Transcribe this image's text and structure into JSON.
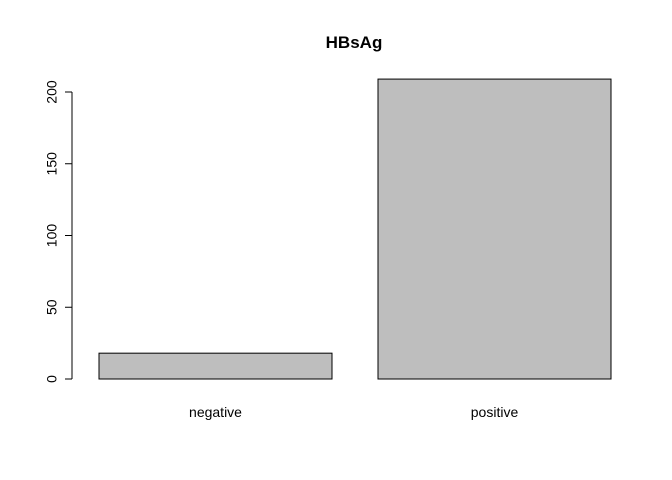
{
  "chart_data": {
    "type": "bar",
    "title": "HBsAg",
    "xlabel": "",
    "ylabel": "",
    "categories": [
      "negative",
      "positive"
    ],
    "values": [
      18,
      209
    ],
    "ylim": [
      0,
      200
    ],
    "yticks": [
      0,
      50,
      100,
      150,
      200
    ],
    "bar_color": "#bebebe",
    "bar_border_color": "#000000",
    "grid": false,
    "legend": "none"
  }
}
